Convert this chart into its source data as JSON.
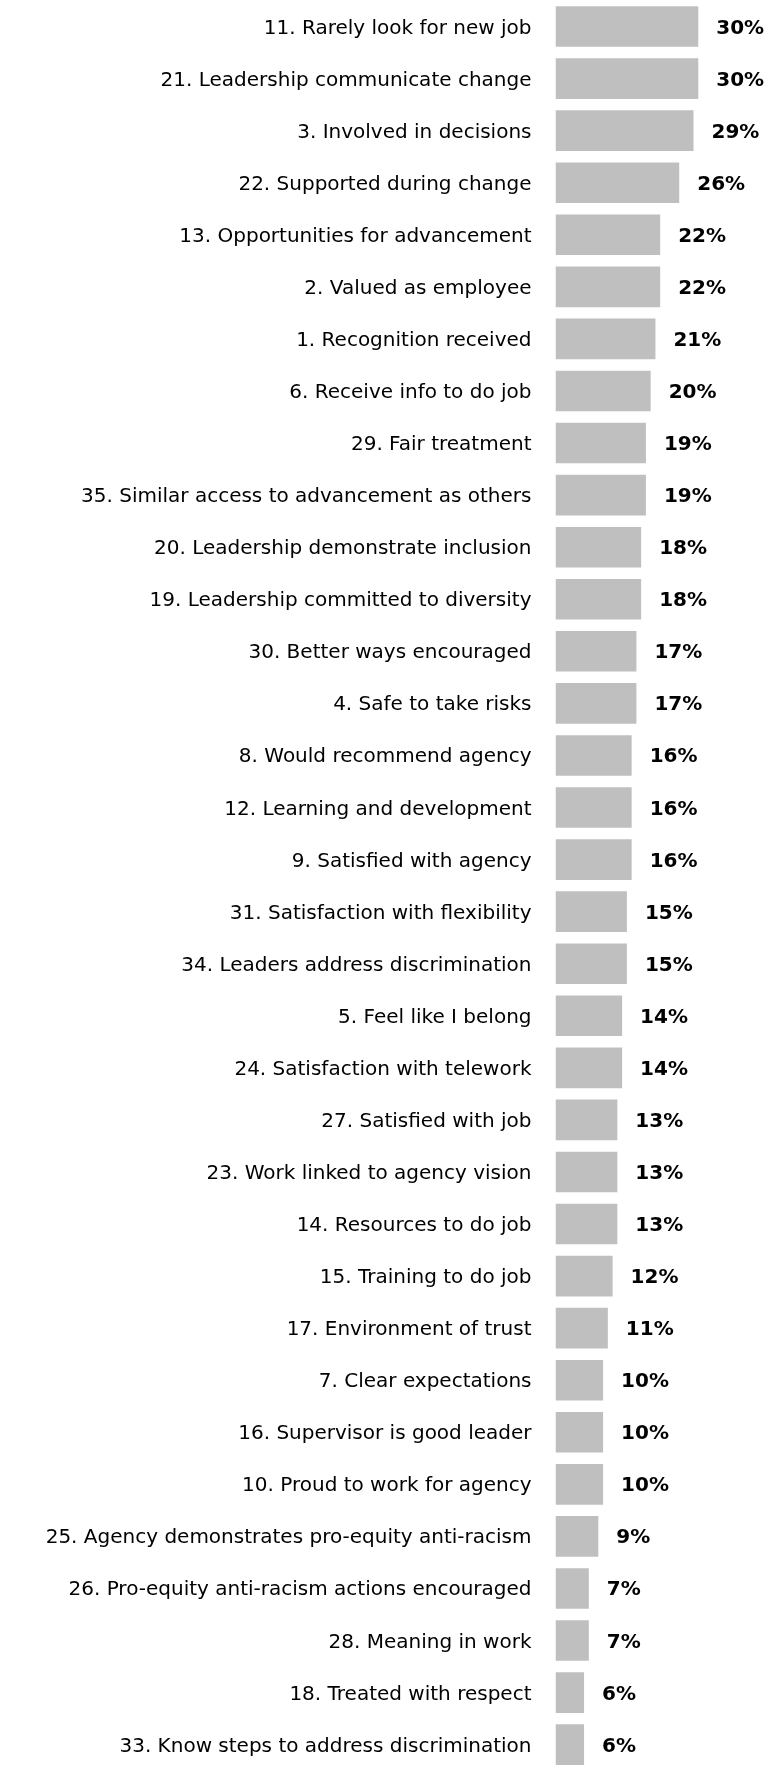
{
  "chart_data": {
    "type": "bar",
    "orientation": "horizontal",
    "color": "#bfbfbf",
    "grid": false,
    "categories": [
      "11. Rarely look for new job",
      "21. Leadership communicate change",
      "3. Involved in decisions",
      "22. Supported during change",
      "13. Opportunities for advancement",
      "2. Valued as employee",
      "1. Recognition received",
      "6. Receive info to do job",
      "29. Fair treatment",
      "35. Similar access to advancement as others",
      "20. Leadership demonstrate inclusion",
      "19. Leadership committed to diversity",
      "30. Better ways encouraged",
      "4. Safe to take risks",
      "8. Would recommend agency",
      "12. Learning and development",
      "9. Satisfied with agency",
      "31. Satisfaction with flexibility",
      "34. Leaders address discrimination",
      "5. Feel like I belong",
      "24. Satisfaction with telework",
      "27. Satisfied with job",
      "23. Work linked to agency vision",
      "14. Resources to do job",
      "15. Training to do job",
      "17. Environment of trust",
      "7. Clear expectations",
      "16. Supervisor is good leader",
      "10. Proud to work for agency",
      "25. Agency demonstrates pro-equity anti-racism",
      "26. Pro-equity anti-racism actions encouraged",
      "28. Meaning in work",
      "18. Treated with respect",
      "33. Know steps to address discrimination"
    ],
    "values": [
      30,
      30,
      29,
      26,
      22,
      22,
      21,
      20,
      19,
      19,
      18,
      18,
      17,
      17,
      16,
      16,
      16,
      15,
      15,
      14,
      14,
      13,
      13,
      13,
      12,
      11,
      10,
      10,
      10,
      9,
      7,
      7,
      6,
      6
    ],
    "value_labels": [
      "30%",
      "30%",
      "29%",
      "26%",
      "22%",
      "22%",
      "21%",
      "20%",
      "19%",
      "19%",
      "18%",
      "18%",
      "17%",
      "17%",
      "16%",
      "16%",
      "16%",
      "15%",
      "15%",
      "14%",
      "14%",
      "13%",
      "13%",
      "13%",
      "12%",
      "11%",
      "10%",
      "10%",
      "10%",
      "9%",
      "7%",
      "7%",
      "6%",
      "6%"
    ]
  }
}
